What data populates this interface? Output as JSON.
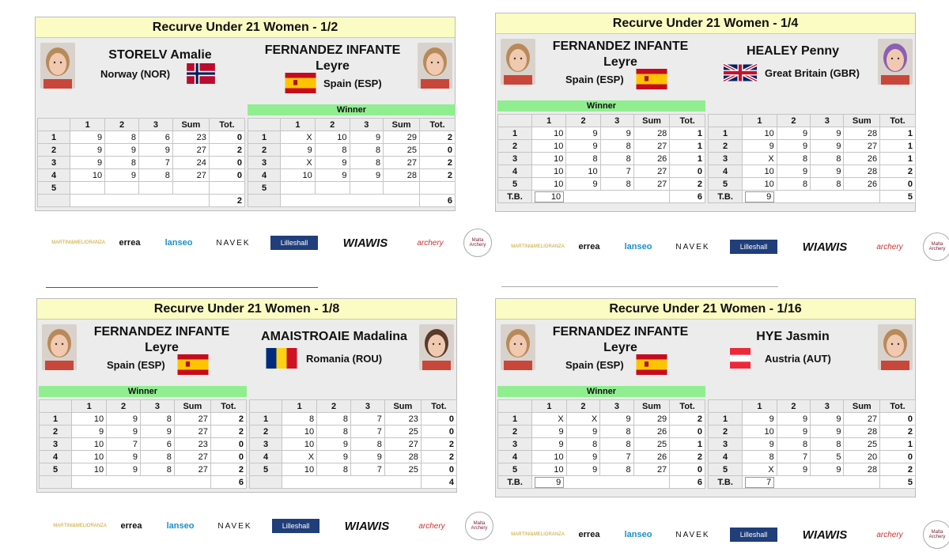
{
  "colors": {
    "title_bg": "#fbfbc4",
    "winner_bg": "#90ee90",
    "panel_bg": "#ececec"
  },
  "sponsors": [
    "MARTINI&MELIORANZA",
    "errea",
    "lanseo",
    "NAVEK",
    "Lilleshall",
    "WIAWIS",
    "archery",
    "Malta Archery"
  ],
  "panels": [
    {
      "title": "Recurve Under 21 Women - 1/2",
      "left": {
        "name1": "STORELV Amalie",
        "name2": "",
        "country": "Norway (NOR)",
        "flag": "NOR",
        "winner": "",
        "head": [
          "",
          "1",
          "2",
          "3",
          "Sum",
          "Tot."
        ],
        "rows": [
          [
            "1",
            "9",
            "8",
            "6",
            "23",
            "0"
          ],
          [
            "2",
            "9",
            "9",
            "9",
            "27",
            "2"
          ],
          [
            "3",
            "9",
            "8",
            "7",
            "24",
            "0"
          ],
          [
            "4",
            "10",
            "9",
            "8",
            "27",
            "0"
          ],
          [
            "5",
            "",
            "",
            "",
            "",
            ""
          ]
        ],
        "final": "2",
        "tb": ""
      },
      "right": {
        "name1": "FERNANDEZ INFANTE",
        "name2": "Leyre",
        "country": "Spain (ESP)",
        "flag": "ESP",
        "winner": "Winner",
        "head": [
          "",
          "1",
          "2",
          "3",
          "Sum",
          "Tot."
        ],
        "rows": [
          [
            "1",
            "X",
            "10",
            "9",
            "29",
            "2"
          ],
          [
            "2",
            "9",
            "8",
            "8",
            "25",
            "0"
          ],
          [
            "3",
            "X",
            "9",
            "8",
            "27",
            "2"
          ],
          [
            "4",
            "10",
            "9",
            "9",
            "28",
            "2"
          ],
          [
            "5",
            "",
            "",
            "",
            "",
            ""
          ]
        ],
        "final": "6",
        "tb": ""
      }
    },
    {
      "title": "Recurve Under 21 Women - 1/4",
      "left": {
        "name1": "FERNANDEZ INFANTE",
        "name2": "Leyre",
        "country": "Spain (ESP)",
        "flag": "ESP",
        "winner": "Winner",
        "head": [
          "",
          "1",
          "2",
          "3",
          "Sum",
          "Tot."
        ],
        "rows": [
          [
            "1",
            "10",
            "9",
            "9",
            "28",
            "1"
          ],
          [
            "2",
            "10",
            "9",
            "8",
            "27",
            "1"
          ],
          [
            "3",
            "10",
            "8",
            "8",
            "26",
            "1"
          ],
          [
            "4",
            "10",
            "10",
            "7",
            "27",
            "0"
          ],
          [
            "5",
            "10",
            "9",
            "8",
            "27",
            "2"
          ]
        ],
        "final": "6",
        "tb_label": "T.B.",
        "tb": "10"
      },
      "right": {
        "name1": "HEALEY Penny",
        "name2": "",
        "country": "Great Britain (GBR)",
        "flag": "GBR",
        "winner": "",
        "head": [
          "",
          "1",
          "2",
          "3",
          "Sum",
          "Tot."
        ],
        "rows": [
          [
            "1",
            "10",
            "9",
            "9",
            "28",
            "1"
          ],
          [
            "2",
            "9",
            "9",
            "9",
            "27",
            "1"
          ],
          [
            "3",
            "X",
            "8",
            "8",
            "26",
            "1"
          ],
          [
            "4",
            "10",
            "9",
            "9",
            "28",
            "2"
          ],
          [
            "5",
            "10",
            "8",
            "8",
            "26",
            "0"
          ]
        ],
        "final": "5",
        "tb_label": "T.B.",
        "tb": "9"
      }
    },
    {
      "title": "Recurve Under 21 Women - 1/8",
      "left": {
        "name1": "FERNANDEZ INFANTE",
        "name2": "Leyre",
        "country": "Spain (ESP)",
        "flag": "ESP",
        "winner": "Winner",
        "head": [
          "",
          "1",
          "2",
          "3",
          "Sum",
          "Tot."
        ],
        "rows": [
          [
            "1",
            "10",
            "9",
            "8",
            "27",
            "2"
          ],
          [
            "2",
            "9",
            "9",
            "9",
            "27",
            "2"
          ],
          [
            "3",
            "10",
            "7",
            "6",
            "23",
            "0"
          ],
          [
            "4",
            "10",
            "9",
            "8",
            "27",
            "0"
          ],
          [
            "5",
            "10",
            "9",
            "8",
            "27",
            "2"
          ]
        ],
        "final": "6",
        "tb": ""
      },
      "right": {
        "name1": "AMAISTROAIE Madalina",
        "name2": "",
        "country": "Romania (ROU)",
        "flag": "ROU",
        "winner": "",
        "head": [
          "",
          "1",
          "2",
          "3",
          "Sum",
          "Tot."
        ],
        "rows": [
          [
            "1",
            "8",
            "8",
            "7",
            "23",
            "0"
          ],
          [
            "2",
            "10",
            "8",
            "7",
            "25",
            "0"
          ],
          [
            "3",
            "10",
            "9",
            "8",
            "27",
            "2"
          ],
          [
            "4",
            "X",
            "9",
            "9",
            "28",
            "2"
          ],
          [
            "5",
            "10",
            "8",
            "7",
            "25",
            "0"
          ]
        ],
        "final": "4",
        "tb": ""
      }
    },
    {
      "title": "Recurve Under 21 Women - 1/16",
      "left": {
        "name1": "FERNANDEZ INFANTE",
        "name2": "Leyre",
        "country": "Spain (ESP)",
        "flag": "ESP",
        "winner": "Winner",
        "head": [
          "",
          "1",
          "2",
          "3",
          "Sum",
          "Tot."
        ],
        "rows": [
          [
            "1",
            "X",
            "X",
            "9",
            "29",
            "2"
          ],
          [
            "2",
            "9",
            "9",
            "8",
            "26",
            "0"
          ],
          [
            "3",
            "9",
            "8",
            "8",
            "25",
            "1"
          ],
          [
            "4",
            "10",
            "9",
            "7",
            "26",
            "2"
          ],
          [
            "5",
            "10",
            "9",
            "8",
            "27",
            "0"
          ]
        ],
        "final": "6",
        "tb_label": "T.B.",
        "tb": "9"
      },
      "right": {
        "name1": "HYE Jasmin",
        "name2": "",
        "country": "Austria (AUT)",
        "flag": "AUT",
        "winner": "",
        "head": [
          "",
          "1",
          "2",
          "3",
          "Sum",
          "Tot."
        ],
        "rows": [
          [
            "1",
            "9",
            "9",
            "9",
            "27",
            "0"
          ],
          [
            "2",
            "10",
            "9",
            "9",
            "28",
            "2"
          ],
          [
            "3",
            "9",
            "8",
            "8",
            "25",
            "1"
          ],
          [
            "4",
            "8",
            "7",
            "5",
            "20",
            "0"
          ],
          [
            "5",
            "X",
            "9",
            "9",
            "28",
            "2"
          ]
        ],
        "final": "5",
        "tb_label": "T.B.",
        "tb": "7"
      }
    }
  ]
}
